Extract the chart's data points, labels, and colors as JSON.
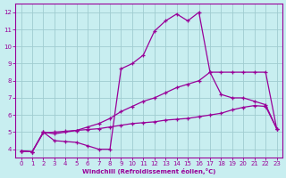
{
  "xlabel": "Windchill (Refroidissement éolien,°C)",
  "xlim": [
    -0.5,
    23.5
  ],
  "ylim": [
    3.5,
    12.5
  ],
  "xticks": [
    0,
    1,
    2,
    3,
    4,
    5,
    6,
    7,
    8,
    9,
    10,
    11,
    12,
    13,
    14,
    15,
    16,
    17,
    18,
    19,
    20,
    21,
    22,
    23
  ],
  "yticks": [
    4,
    5,
    6,
    7,
    8,
    9,
    10,
    11,
    12
  ],
  "bg_color": "#c8eef0",
  "line_color": "#990099",
  "grid_color": "#a0ccd0",
  "curve1_x": [
    0,
    1,
    2,
    3,
    4,
    5,
    6,
    7,
    8,
    9,
    10,
    11,
    12,
    13,
    14,
    15,
    16,
    17,
    18,
    19,
    20,
    21,
    22,
    23
  ],
  "curve1_y": [
    3.9,
    3.85,
    5.0,
    4.5,
    4.45,
    4.4,
    4.2,
    4.0,
    4.0,
    8.7,
    9.0,
    9.5,
    10.9,
    11.5,
    11.9,
    11.5,
    12.0,
    8.5,
    8.5,
    8.5,
    8.5,
    8.5,
    8.5,
    5.2
  ],
  "curve2_x": [
    0,
    1,
    2,
    3,
    4,
    5,
    6,
    7,
    8,
    9,
    10,
    11,
    12,
    13,
    14,
    15,
    16,
    17,
    18,
    19,
    20,
    21,
    22,
    23
  ],
  "curve2_y": [
    3.9,
    3.85,
    5.0,
    4.9,
    5.0,
    5.1,
    5.3,
    5.5,
    5.8,
    6.2,
    6.5,
    6.8,
    7.0,
    7.3,
    7.6,
    7.8,
    8.0,
    8.5,
    7.2,
    7.0,
    7.0,
    6.8,
    6.6,
    5.2
  ],
  "curve3_x": [
    0,
    1,
    2,
    3,
    4,
    5,
    6,
    7,
    8,
    9,
    10,
    11,
    12,
    13,
    14,
    15,
    16,
    17,
    18,
    19,
    20,
    21,
    22,
    23
  ],
  "curve3_y": [
    3.9,
    3.85,
    4.95,
    5.0,
    5.05,
    5.1,
    5.15,
    5.2,
    5.3,
    5.4,
    5.5,
    5.55,
    5.6,
    5.7,
    5.75,
    5.8,
    5.9,
    6.0,
    6.1,
    6.3,
    6.45,
    6.55,
    6.5,
    5.2
  ]
}
